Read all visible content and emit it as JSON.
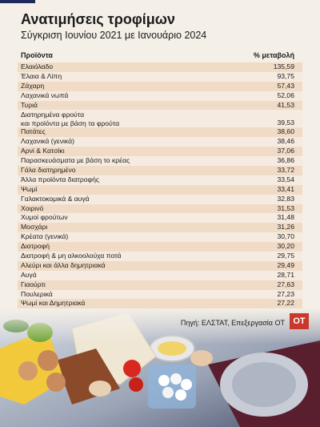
{
  "title": "Ανατιμήσεις τροφίμων",
  "subtitle": "Σύγκριση Ιουνίου 2021 με Ιανουάριο 2024",
  "source": "Πηγή: ΕΛΣΤΑΤ, Επεξεργασία ΟΤ",
  "logo_text": "OT",
  "colors": {
    "row_odd": "#f0dcc6",
    "row_even": "#f6ebe0",
    "logo": "#c9392b"
  },
  "chart_data": {
    "type": "table",
    "columns": [
      "Προϊόντα",
      "% μεταβολή"
    ],
    "rows": [
      {
        "label": "Ελαιόλαδο",
        "value": "135,59"
      },
      {
        "label": "Έλαια & Λίπη",
        "value": "93,75"
      },
      {
        "label": "Ζάχαρη",
        "value": "57,43"
      },
      {
        "label": "Λαχανικά νωπά",
        "value": "52,06"
      },
      {
        "label": "Τυριά",
        "value": "41,53"
      },
      {
        "label": "Διατηρημένα φρούτα\nκαι προϊόντα με βάση τα φρούτα",
        "value": "39,53"
      },
      {
        "label": "Πατάτες",
        "value": "38,60"
      },
      {
        "label": "Λαχανικά (γενικά)",
        "value": "38,46"
      },
      {
        "label": "Αρνί & Κατσίκι",
        "value": "37,06"
      },
      {
        "label": "Παρασκευάσματα με βάση το κρέας",
        "value": "36,86"
      },
      {
        "label": "Γάλα διατηρημένο",
        "value": "33,72"
      },
      {
        "label": "Άλλα προϊόντα διατροφής",
        "value": "33,54"
      },
      {
        "label": "Ψωμί",
        "value": "33,41"
      },
      {
        "label": "Γαλακτοκομικά & αυγά",
        "value": "32,83"
      },
      {
        "label": "Χοιρινό",
        "value": "31,53"
      },
      {
        "label": "Χυμοί φρούτων",
        "value": "31,48"
      },
      {
        "label": "Μοσχάρι",
        "value": "31,26"
      },
      {
        "label": "Κρέατα (γενικά)",
        "value": "30,70"
      },
      {
        "label": "Διατροφή",
        "value": "30,20"
      },
      {
        "label": "Διατροφή & μη αλκοολούχα ποτά",
        "value": "29,75"
      },
      {
        "label": "Αλεύρι και άλλα δημητριακά",
        "value": "29,49"
      },
      {
        "label": "Αυγά",
        "value": "28,71"
      },
      {
        "label": "Γιαούρτι",
        "value": "27,63"
      },
      {
        "label": "Πουλερικά",
        "value": "27,23"
      },
      {
        "label": "Ψωμί και Δημητριακά",
        "value": "27,22"
      }
    ]
  }
}
